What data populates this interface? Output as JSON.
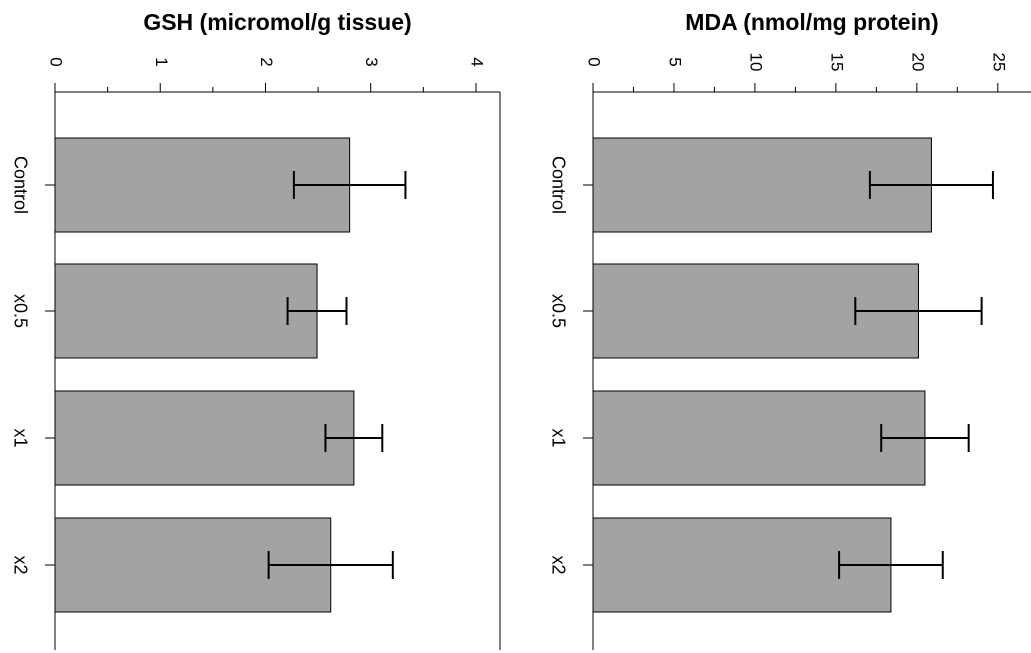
{
  "chart_data": [
    {
      "type": "bar",
      "orientation": "horizontal",
      "title": "GSH (micromol/g tissue)",
      "categories": [
        "Control",
        "x0.5",
        "x1",
        "x2"
      ],
      "series": [
        {
          "values": [
            2.8,
            2.49,
            2.84,
            2.62
          ]
        }
      ],
      "error": [
        0.53,
        0.28,
        0.27,
        0.59
      ],
      "xlim": [
        0,
        4.2
      ],
      "ticks": [
        0,
        1,
        2,
        3,
        4
      ],
      "tick_labels": [
        "0",
        "1",
        "2",
        "3",
        "4"
      ],
      "grid": false,
      "bar_color": "#a3a3a3"
    },
    {
      "type": "bar",
      "orientation": "horizontal",
      "title": "MDA (nmol/mg protein)",
      "categories": [
        "Control",
        "x0.5",
        "x1",
        "x2"
      ],
      "series": [
        {
          "values": [
            20.9,
            20.1,
            20.5,
            18.4
          ]
        }
      ],
      "error": [
        3.8,
        3.9,
        2.7,
        3.2
      ],
      "xlim": [
        0,
        26
      ],
      "ticks": [
        0,
        5,
        10,
        15,
        20,
        25
      ],
      "tick_labels": [
        "0",
        "5",
        "10",
        "15",
        "20",
        "25"
      ],
      "grid": false,
      "bar_color": "#a3a3a3"
    }
  ]
}
